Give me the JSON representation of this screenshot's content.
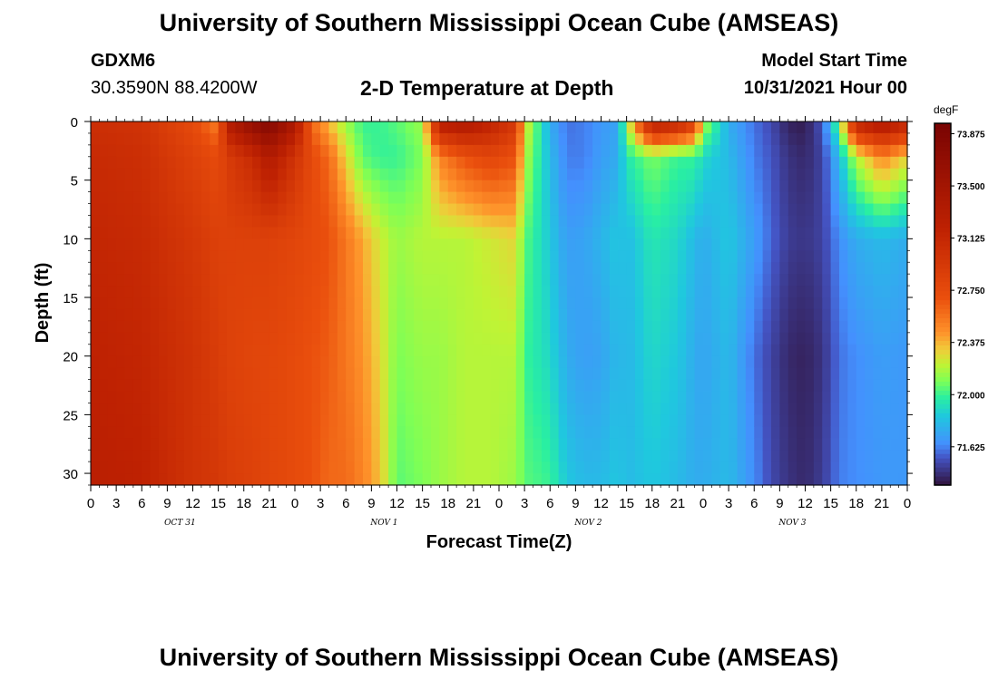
{
  "header": {
    "title": "University of Southern Mississippi Ocean Cube (AMSEAS)",
    "footer_title": "University of Southern Mississippi Ocean Cube (AMSEAS)",
    "station": "GDXM6",
    "coords": "30.3590N  88.4200W",
    "plot_title": "2-D Temperature at Depth",
    "start_label": "Model Start Time",
    "start_value": "10/31/2021 Hour 00"
  },
  "chart_data": {
    "type": "heatmap",
    "title": "2-D Temperature at Depth",
    "xlabel": "Forecast Time(Z)",
    "ylabel": "Depth (ft)",
    "x_hours": [
      0,
      96
    ],
    "y_depth_range": [
      0,
      31
    ],
    "x_tick_labels": [
      "0",
      "3",
      "6",
      "9",
      "12",
      "15",
      "18",
      "21",
      "0",
      "3",
      "6",
      "9",
      "12",
      "15",
      "18",
      "21",
      "0",
      "3",
      "6",
      "9",
      "12",
      "15",
      "18",
      "21",
      "0",
      "3",
      "6",
      "9",
      "12",
      "15",
      "18",
      "21",
      "0"
    ],
    "day_labels": [
      {
        "text": "OCT 31",
        "hour": 10.5
      },
      {
        "text": "NOV 1",
        "hour": 34.5
      },
      {
        "text": "NOV 2",
        "hour": 58.5
      },
      {
        "text": "NOV 3",
        "hour": 82.5
      }
    ],
    "y_ticks": [
      0,
      5,
      10,
      15,
      20,
      25,
      30
    ],
    "colorbar": {
      "unit": "degF",
      "min": 71.35,
      "max": 73.95,
      "labels": [
        "73.875",
        "73.500",
        "73.125",
        "72.750",
        "72.375",
        "72.000",
        "71.625"
      ],
      "colors": [
        "#30123b",
        "#4454c4",
        "#4490fe",
        "#1fc8de",
        "#29efa2",
        "#7dff56",
        "#c1f334",
        "#f1ca3a",
        "#fe922a",
        "#ea4f0d",
        "#be2102",
        "#7a0403"
      ],
      "stops_degF": [
        71.35,
        71.55,
        71.65,
        71.85,
        71.98,
        72.1,
        72.22,
        72.33,
        72.45,
        72.7,
        73.2,
        73.95
      ]
    },
    "temperature_field": {
      "depth_levels_ft": [
        0,
        3,
        10,
        20,
        31
      ],
      "columns": [
        {
          "hour": 0,
          "temps": [
            73.05,
            73.1,
            73.15,
            73.2,
            73.25
          ]
        },
        {
          "hour": 6,
          "temps": [
            73.0,
            73.05,
            73.1,
            73.15,
            73.2
          ]
        },
        {
          "hour": 12,
          "temps": [
            72.75,
            72.85,
            72.95,
            73.0,
            73.0
          ]
        },
        {
          "hour": 15,
          "temps": [
            72.5,
            72.75,
            72.85,
            72.9,
            72.95
          ]
        },
        {
          "hour": 16,
          "temps": [
            73.3,
            72.9,
            72.85,
            72.85,
            72.9
          ]
        },
        {
          "hour": 19,
          "temps": [
            73.7,
            73.1,
            72.85,
            72.8,
            72.85
          ]
        },
        {
          "hour": 21,
          "temps": [
            73.85,
            73.35,
            72.85,
            72.8,
            72.8
          ]
        },
        {
          "hour": 24,
          "temps": [
            73.4,
            73.0,
            72.8,
            72.75,
            72.75
          ]
        },
        {
          "hour": 26,
          "temps": [
            72.6,
            72.75,
            72.75,
            72.7,
            72.7
          ]
        },
        {
          "hour": 28,
          "temps": [
            72.35,
            72.6,
            72.7,
            72.65,
            72.6
          ]
        },
        {
          "hour": 30,
          "temps": [
            72.15,
            72.3,
            72.55,
            72.55,
            72.6
          ]
        },
        {
          "hour": 32,
          "temps": [
            72.0,
            72.05,
            72.4,
            72.45,
            72.5
          ]
        },
        {
          "hour": 34,
          "temps": [
            72.0,
            72.0,
            72.25,
            72.3,
            72.35
          ]
        },
        {
          "hour": 36,
          "temps": [
            72.05,
            72.0,
            72.15,
            72.1,
            72.05
          ]
        },
        {
          "hour": 39,
          "temps": [
            72.15,
            72.1,
            72.2,
            72.15,
            72.1
          ]
        },
        {
          "hour": 41,
          "temps": [
            73.3,
            72.5,
            72.2,
            72.15,
            72.15
          ]
        },
        {
          "hour": 44,
          "temps": [
            73.4,
            72.7,
            72.2,
            72.2,
            72.2
          ]
        },
        {
          "hour": 47,
          "temps": [
            73.2,
            72.8,
            72.25,
            72.2,
            72.2
          ]
        },
        {
          "hour": 50,
          "temps": [
            72.95,
            72.7,
            72.3,
            72.2,
            72.15
          ]
        },
        {
          "hour": 51,
          "temps": [
            72.3,
            72.2,
            72.05,
            72.0,
            72.05
          ]
        },
        {
          "hour": 54,
          "temps": [
            71.75,
            71.8,
            71.85,
            71.9,
            72.0
          ]
        },
        {
          "hour": 56,
          "temps": [
            71.6,
            71.62,
            71.7,
            71.75,
            71.85
          ]
        },
        {
          "hour": 58,
          "temps": [
            71.62,
            71.62,
            71.72,
            71.7,
            71.8
          ]
        },
        {
          "hour": 60,
          "temps": [
            71.68,
            71.7,
            71.78,
            71.72,
            71.8
          ]
        },
        {
          "hour": 62,
          "temps": [
            71.72,
            71.75,
            71.85,
            71.8,
            71.85
          ]
        },
        {
          "hour": 63,
          "temps": [
            72.15,
            71.95,
            71.8,
            71.78,
            71.8
          ]
        },
        {
          "hour": 66,
          "temps": [
            73.3,
            72.1,
            71.95,
            71.9,
            71.85
          ]
        },
        {
          "hour": 69,
          "temps": [
            73.2,
            72.0,
            71.9,
            71.85,
            71.8
          ]
        },
        {
          "hour": 71,
          "temps": [
            72.9,
            72.0,
            71.8,
            71.75,
            71.75
          ]
        },
        {
          "hour": 72,
          "temps": [
            72.2,
            71.9,
            71.75,
            71.72,
            71.75
          ]
        },
        {
          "hour": 75,
          "temps": [
            71.75,
            71.8,
            71.85,
            71.8,
            71.8
          ]
        },
        {
          "hour": 78,
          "temps": [
            71.6,
            71.62,
            71.7,
            71.6,
            71.65
          ]
        },
        {
          "hour": 80,
          "temps": [
            71.52,
            71.55,
            71.58,
            71.5,
            71.52
          ]
        },
        {
          "hour": 82,
          "temps": [
            71.4,
            71.45,
            71.48,
            71.42,
            71.45
          ]
        },
        {
          "hour": 84,
          "temps": [
            71.38,
            71.42,
            71.46,
            71.4,
            71.42
          ]
        },
        {
          "hour": 86,
          "temps": [
            71.55,
            71.5,
            71.5,
            71.45,
            71.48
          ]
        },
        {
          "hour": 88,
          "temps": [
            72.1,
            71.8,
            71.65,
            71.6,
            71.62
          ]
        },
        {
          "hour": 90,
          "temps": [
            73.2,
            72.2,
            71.75,
            71.65,
            71.65
          ]
        },
        {
          "hour": 93,
          "temps": [
            73.4,
            72.5,
            71.8,
            71.7,
            71.68
          ]
        },
        {
          "hour": 96,
          "temps": [
            73.2,
            72.3,
            71.75,
            71.68,
            71.68
          ]
        }
      ]
    }
  }
}
